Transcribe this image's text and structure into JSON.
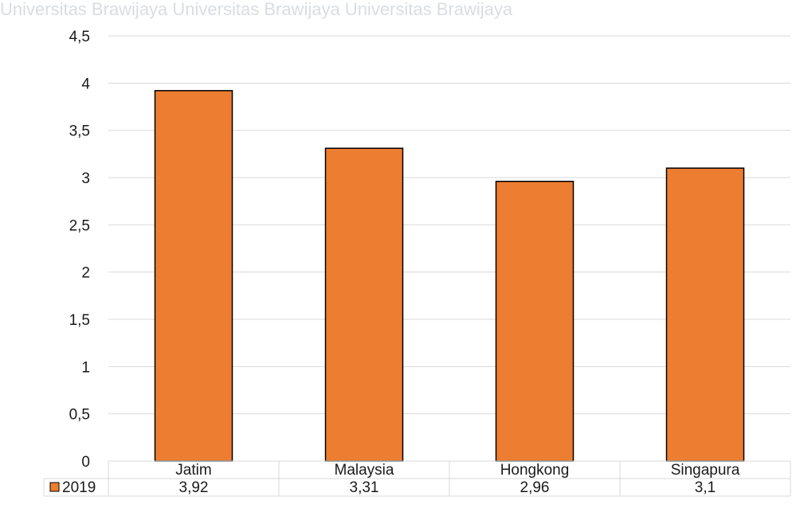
{
  "watermark": {
    "text": "Universitas Brawijaya Universitas Brawijaya Universitas Brawijaya"
  },
  "chart_data": {
    "type": "bar",
    "categories": [
      "Jatim",
      "Malaysia",
      "Hongkong",
      "Singapura"
    ],
    "series": [
      {
        "name": "2019",
        "values": [
          3.92,
          3.31,
          2.96,
          3.1
        ],
        "color": "#ED7D31"
      }
    ],
    "value_labels": [
      "3,92",
      "3,31",
      "2,96",
      "3,1"
    ],
    "ylim": [
      0,
      4.5
    ],
    "yticks": [
      0,
      0.5,
      1,
      1.5,
      2,
      2.5,
      3,
      3.5,
      4,
      4.5
    ],
    "ytick_labels": [
      "0",
      "0,5",
      "1",
      "1,5",
      "2",
      "2,5",
      "3",
      "3,5",
      "4",
      "4,5"
    ],
    "grid": true,
    "legend_placement": "data-table",
    "colors": {
      "bar": "#ED7D31",
      "bar_border": "#000000",
      "grid": "#d9d9d9",
      "table_border": "#d9d9d9"
    }
  }
}
